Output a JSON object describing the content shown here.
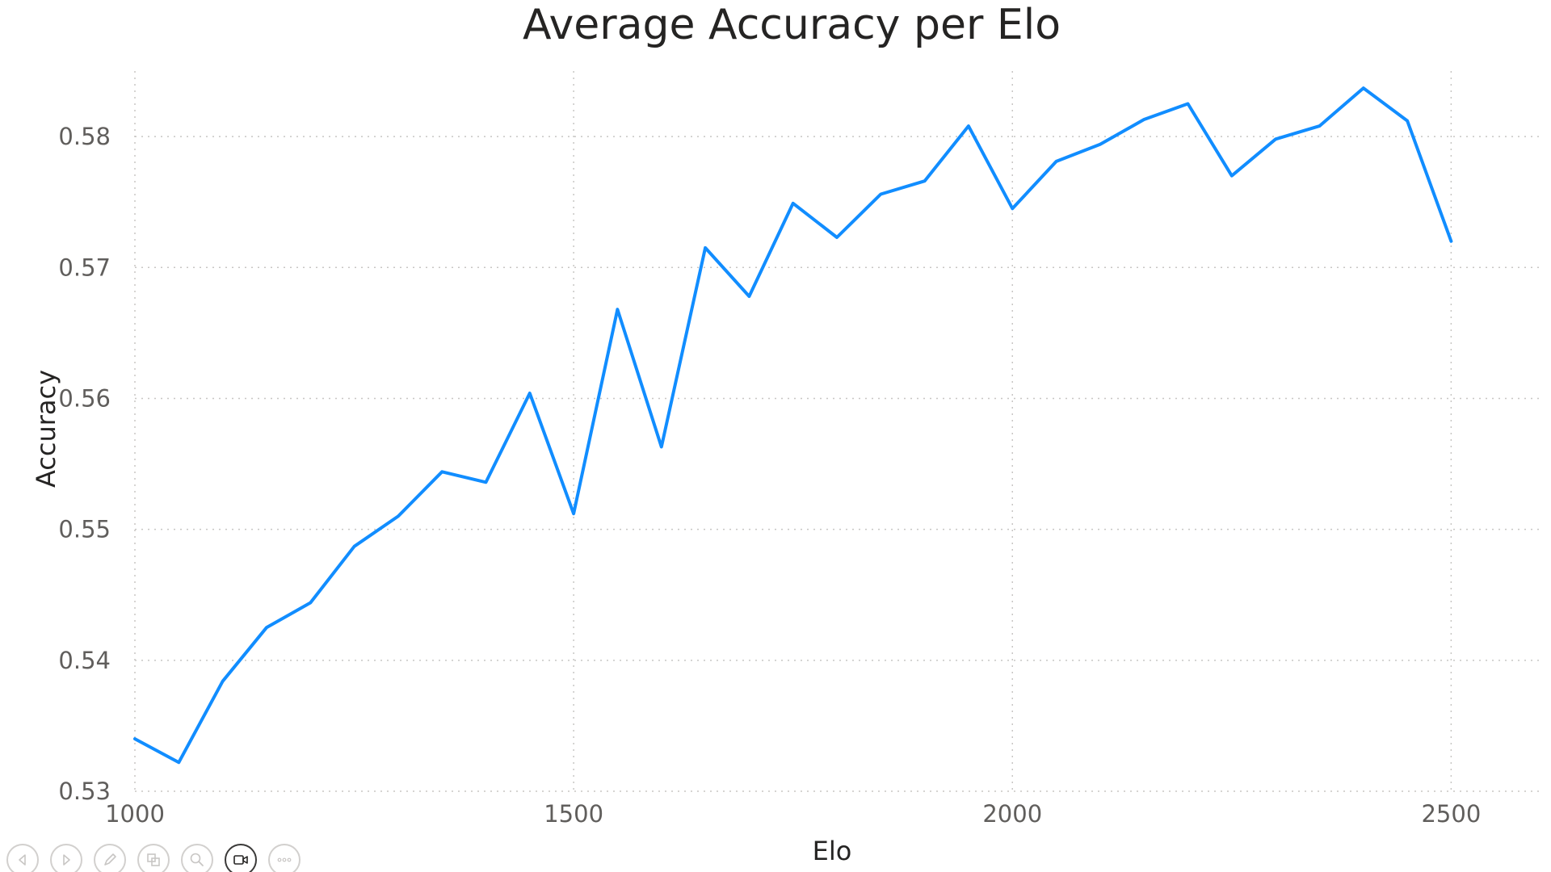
{
  "chart_data": {
    "type": "line",
    "title": "Average Accuracy per Elo",
    "xlabel": "Elo",
    "ylabel": "Accuracy",
    "xlim": [
      1000,
      2600
    ],
    "ylim": [
      0.53,
      0.585
    ],
    "xticks": [
      1000,
      1500,
      2000,
      2500
    ],
    "yticks": [
      0.53,
      0.54,
      0.55,
      0.56,
      0.57,
      0.58
    ],
    "grid": true,
    "series": [
      {
        "color": "#118DFF",
        "x": [
          1000,
          1050,
          1100,
          1150,
          1200,
          1250,
          1300,
          1350,
          1400,
          1450,
          1500,
          1550,
          1600,
          1650,
          1700,
          1750,
          1800,
          1850,
          1900,
          1950,
          2000,
          2050,
          2100,
          2150,
          2200,
          2250,
          2300,
          2350,
          2400,
          2450,
          2500
        ],
        "y": [
          0.534,
          0.5322,
          0.5384,
          0.5425,
          0.5444,
          0.5487,
          0.551,
          0.5544,
          0.5536,
          0.5604,
          0.5512,
          0.5668,
          0.5563,
          0.5715,
          0.5678,
          0.5749,
          0.5723,
          0.5756,
          0.5766,
          0.5808,
          0.5745,
          0.5781,
          0.5794,
          0.5813,
          0.5825,
          0.577,
          0.5798,
          0.5808,
          0.5837,
          0.5812,
          0.572
        ]
      }
    ]
  },
  "toolbar": {
    "buttons": [
      {
        "icon": "arrow-left-icon"
      },
      {
        "icon": "arrow-right-icon"
      },
      {
        "icon": "pen-icon"
      },
      {
        "icon": "copy-visual-icon"
      },
      {
        "icon": "zoom-icon"
      },
      {
        "icon": "video-camera-icon"
      },
      {
        "icon": "more-options-icon"
      }
    ]
  }
}
